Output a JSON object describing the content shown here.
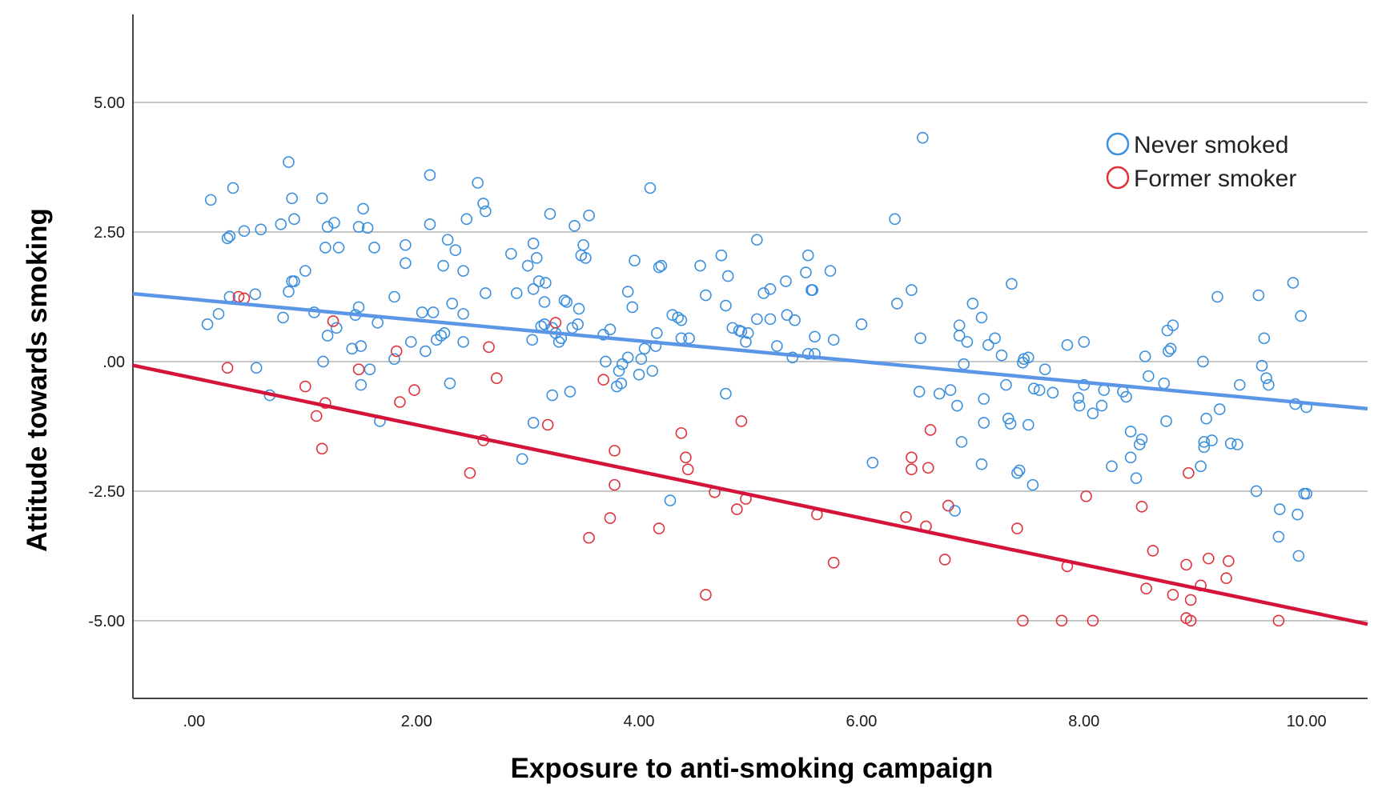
{
  "chart_data": {
    "type": "scatter",
    "title": "",
    "xlabel": "Exposure to anti-smoking campaign",
    "ylabel": "Attitude towards smoking",
    "xlim": [
      -0.55,
      10.55
    ],
    "ylim": [
      -6.5,
      6.7
    ],
    "x_ticks": [
      ".00",
      "2.00",
      "4.00",
      "6.00",
      "8.00",
      "10.00"
    ],
    "x_tick_values": [
      0,
      2,
      4,
      6,
      8,
      10
    ],
    "y_ticks": [
      "5.00",
      "2.50",
      ".00",
      "-2.50",
      "-5.00"
    ],
    "y_tick_values": [
      5,
      2.5,
      0,
      -2.5,
      -5
    ],
    "grid": "horizontal",
    "legend_position": "top-right",
    "series": [
      {
        "name": "Never smoked",
        "color": "#3a8fde",
        "fit_line": {
          "color": "#5b95e5",
          "intercept": 1.2,
          "slope": -0.2
        },
        "points": [
          [
            0.12,
            0.72
          ],
          [
            0.15,
            3.12
          ],
          [
            0.22,
            0.92
          ],
          [
            0.3,
            2.38
          ],
          [
            0.32,
            2.42
          ],
          [
            0.35,
            3.35
          ],
          [
            0.32,
            1.25
          ],
          [
            0.45,
            2.52
          ],
          [
            0.55,
            1.3
          ],
          [
            0.6,
            2.55
          ],
          [
            0.56,
            -0.12
          ],
          [
            0.68,
            -0.65
          ],
          [
            0.78,
            2.65
          ],
          [
            0.8,
            0.85
          ],
          [
            0.85,
            1.35
          ],
          [
            0.85,
            3.85
          ],
          [
            0.88,
            3.15
          ],
          [
            0.9,
            2.75
          ],
          [
            0.88,
            1.55
          ],
          [
            0.9,
            1.55
          ],
          [
            1.0,
            1.75
          ],
          [
            1.08,
            0.95
          ],
          [
            1.15,
            3.15
          ],
          [
            1.18,
            2.2
          ],
          [
            1.2,
            2.6
          ],
          [
            1.16,
            0.0
          ],
          [
            1.2,
            0.5
          ],
          [
            1.26,
            2.68
          ],
          [
            1.28,
            0.65
          ],
          [
            1.3,
            2.2
          ],
          [
            1.42,
            0.25
          ],
          [
            1.45,
            0.9
          ],
          [
            1.48,
            1.05
          ],
          [
            1.48,
            2.6
          ],
          [
            1.5,
            0.3
          ],
          [
            1.5,
            -0.45
          ],
          [
            1.52,
            2.95
          ],
          [
            1.56,
            2.58
          ],
          [
            1.58,
            -0.15
          ],
          [
            1.62,
            2.2
          ],
          [
            1.65,
            0.75
          ],
          [
            1.67,
            -1.15
          ],
          [
            1.8,
            1.25
          ],
          [
            1.8,
            0.05
          ],
          [
            1.9,
            2.25
          ],
          [
            1.9,
            1.9
          ],
          [
            1.95,
            0.38
          ],
          [
            2.05,
            0.95
          ],
          [
            2.08,
            0.2
          ],
          [
            2.12,
            3.6
          ],
          [
            2.12,
            2.65
          ],
          [
            2.15,
            0.95
          ],
          [
            2.18,
            0.42
          ],
          [
            2.22,
            0.5
          ],
          [
            2.24,
            1.85
          ],
          [
            2.25,
            0.55
          ],
          [
            2.28,
            2.35
          ],
          [
            2.32,
            1.12
          ],
          [
            2.3,
            -0.42
          ],
          [
            2.35,
            2.15
          ],
          [
            2.42,
            1.75
          ],
          [
            2.42,
            0.92
          ],
          [
            2.42,
            0.38
          ],
          [
            2.45,
            2.75
          ],
          [
            2.55,
            3.45
          ],
          [
            2.6,
            3.05
          ],
          [
            2.62,
            2.9
          ],
          [
            2.62,
            1.32
          ],
          [
            2.85,
            2.08
          ],
          [
            2.9,
            1.32
          ],
          [
            2.95,
            -1.88
          ],
          [
            3.0,
            1.85
          ],
          [
            3.04,
            0.42
          ],
          [
            3.05,
            1.4
          ],
          [
            3.05,
            2.28
          ],
          [
            3.08,
            2.0
          ],
          [
            3.1,
            1.55
          ],
          [
            3.12,
            0.68
          ],
          [
            3.15,
            1.15
          ],
          [
            3.15,
            0.72
          ],
          [
            3.16,
            1.52
          ],
          [
            3.2,
            2.85
          ],
          [
            3.22,
            0.65
          ],
          [
            3.25,
            0.55
          ],
          [
            3.22,
            -0.65
          ],
          [
            3.28,
            0.38
          ],
          [
            3.3,
            0.45
          ],
          [
            3.33,
            1.18
          ],
          [
            3.35,
            1.15
          ],
          [
            3.38,
            -0.58
          ],
          [
            3.4,
            0.65
          ],
          [
            3.42,
            2.62
          ],
          [
            3.45,
            0.72
          ],
          [
            3.46,
            1.02
          ],
          [
            3.48,
            2.05
          ],
          [
            3.5,
            2.25
          ],
          [
            3.52,
            2.0
          ],
          [
            3.55,
            2.82
          ],
          [
            3.05,
            -1.18
          ],
          [
            3.68,
            0.52
          ],
          [
            3.7,
            0.0
          ],
          [
            3.74,
            0.62
          ],
          [
            3.8,
            -0.48
          ],
          [
            3.82,
            -0.18
          ],
          [
            3.85,
            -0.05
          ],
          [
            3.84,
            -0.42
          ],
          [
            3.9,
            0.08
          ],
          [
            3.9,
            1.35
          ],
          [
            3.94,
            1.05
          ],
          [
            3.96,
            1.95
          ],
          [
            4.0,
            -0.25
          ],
          [
            4.02,
            0.05
          ],
          [
            4.05,
            0.25
          ],
          [
            4.1,
            3.35
          ],
          [
            4.12,
            -0.18
          ],
          [
            4.15,
            0.3
          ],
          [
            4.16,
            0.55
          ],
          [
            4.18,
            1.82
          ],
          [
            4.2,
            1.85
          ],
          [
            4.28,
            -2.68
          ],
          [
            4.3,
            0.9
          ],
          [
            4.35,
            0.85
          ],
          [
            4.38,
            0.8
          ],
          [
            4.38,
            0.45
          ],
          [
            4.45,
            0.45
          ],
          [
            4.55,
            1.85
          ],
          [
            4.6,
            1.28
          ],
          [
            4.74,
            2.05
          ],
          [
            4.78,
            1.08
          ],
          [
            4.78,
            -0.62
          ],
          [
            4.8,
            1.65
          ],
          [
            4.84,
            0.65
          ],
          [
            4.9,
            0.6
          ],
          [
            4.92,
            0.58
          ],
          [
            4.96,
            0.38
          ],
          [
            4.98,
            0.55
          ],
          [
            5.06,
            0.82
          ],
          [
            5.06,
            2.35
          ],
          [
            5.12,
            1.32
          ],
          [
            5.18,
            1.4
          ],
          [
            5.18,
            0.82
          ],
          [
            5.24,
            0.3
          ],
          [
            5.32,
            1.55
          ],
          [
            5.33,
            0.9
          ],
          [
            5.38,
            0.08
          ],
          [
            5.4,
            0.8
          ],
          [
            5.5,
            1.72
          ],
          [
            5.52,
            2.05
          ],
          [
            5.52,
            0.15
          ],
          [
            5.55,
            1.38
          ],
          [
            5.56,
            1.38
          ],
          [
            5.58,
            0.48
          ],
          [
            5.58,
            0.15
          ],
          [
            5.72,
            1.75
          ],
          [
            5.75,
            0.42
          ],
          [
            6.0,
            0.72
          ],
          [
            6.1,
            -1.95
          ],
          [
            6.3,
            2.75
          ],
          [
            6.32,
            1.12
          ],
          [
            6.45,
            1.38
          ],
          [
            6.52,
            -0.58
          ],
          [
            6.53,
            0.45
          ],
          [
            6.55,
            4.32
          ],
          [
            6.7,
            -0.62
          ],
          [
            6.8,
            -0.55
          ],
          [
            6.84,
            -2.88
          ],
          [
            6.86,
            -0.85
          ],
          [
            6.88,
            0.5
          ],
          [
            6.88,
            0.7
          ],
          [
            6.9,
            -1.55
          ],
          [
            6.92,
            -0.05
          ],
          [
            6.95,
            0.38
          ],
          [
            7.0,
            1.12
          ],
          [
            7.08,
            0.85
          ],
          [
            7.08,
            -1.98
          ],
          [
            7.1,
            -0.72
          ],
          [
            7.1,
            -1.18
          ],
          [
            7.14,
            0.32
          ],
          [
            7.2,
            0.45
          ],
          [
            7.26,
            0.12
          ],
          [
            7.3,
            -0.45
          ],
          [
            7.32,
            -1.1
          ],
          [
            7.34,
            -1.2
          ],
          [
            7.35,
            1.5
          ],
          [
            7.4,
            -2.15
          ],
          [
            7.42,
            -2.1
          ],
          [
            7.45,
            -0.02
          ],
          [
            7.46,
            0.05
          ],
          [
            7.5,
            0.08
          ],
          [
            7.5,
            -1.22
          ],
          [
            7.54,
            -2.38
          ],
          [
            7.55,
            -0.52
          ],
          [
            7.6,
            -0.55
          ],
          [
            7.65,
            -0.15
          ],
          [
            7.72,
            -0.6
          ],
          [
            7.85,
            0.32
          ],
          [
            7.95,
            -0.7
          ],
          [
            7.96,
            -0.85
          ],
          [
            8.0,
            0.38
          ],
          [
            8.0,
            -0.45
          ],
          [
            8.08,
            -1.0
          ],
          [
            8.16,
            -0.85
          ],
          [
            8.18,
            -0.55
          ],
          [
            8.25,
            -2.02
          ],
          [
            8.35,
            -0.58
          ],
          [
            8.38,
            -0.68
          ],
          [
            8.42,
            -1.35
          ],
          [
            8.42,
            -1.85
          ],
          [
            8.47,
            -2.25
          ],
          [
            8.5,
            -1.6
          ],
          [
            8.52,
            -1.5
          ],
          [
            8.55,
            0.1
          ],
          [
            8.58,
            -0.28
          ],
          [
            8.72,
            -0.42
          ],
          [
            8.74,
            -1.15
          ],
          [
            8.75,
            0.6
          ],
          [
            8.76,
            0.2
          ],
          [
            8.78,
            0.25
          ],
          [
            8.8,
            0.7
          ],
          [
            9.05,
            -2.02
          ],
          [
            9.07,
            0.0
          ],
          [
            9.08,
            -1.65
          ],
          [
            9.08,
            -1.55
          ],
          [
            9.1,
            -1.1
          ],
          [
            9.15,
            -1.52
          ],
          [
            9.2,
            1.25
          ],
          [
            9.22,
            -0.92
          ],
          [
            9.32,
            -1.58
          ],
          [
            9.38,
            -1.6
          ],
          [
            9.4,
            -0.45
          ],
          [
            9.55,
            -2.5
          ],
          [
            9.57,
            1.28
          ],
          [
            9.6,
            -0.08
          ],
          [
            9.62,
            0.45
          ],
          [
            9.64,
            -0.32
          ],
          [
            9.66,
            -0.45
          ],
          [
            9.75,
            -3.38
          ],
          [
            9.76,
            -2.85
          ],
          [
            9.88,
            1.52
          ],
          [
            9.9,
            -0.82
          ],
          [
            9.92,
            -2.95
          ],
          [
            9.93,
            -3.75
          ],
          [
            9.95,
            0.88
          ],
          [
            9.98,
            -2.55
          ],
          [
            10.0,
            -2.55
          ],
          [
            10.0,
            -0.88
          ]
        ]
      },
      {
        "name": "Former smoker",
        "color": "#e0313a",
        "fit_line": {
          "color": "#d4143b",
          "intercept": -0.32,
          "slope": -0.45
        },
        "points": [
          [
            0.3,
            -0.12
          ],
          [
            0.4,
            1.25
          ],
          [
            0.45,
            1.22
          ],
          [
            1.0,
            -0.48
          ],
          [
            1.1,
            -1.05
          ],
          [
            1.15,
            -1.68
          ],
          [
            1.18,
            -0.8
          ],
          [
            1.25,
            0.78
          ],
          [
            1.48,
            -0.15
          ],
          [
            1.82,
            0.2
          ],
          [
            1.85,
            -0.78
          ],
          [
            1.98,
            -0.55
          ],
          [
            2.48,
            -2.15
          ],
          [
            2.6,
            -1.52
          ],
          [
            2.65,
            0.28
          ],
          [
            2.72,
            -0.32
          ],
          [
            3.18,
            -1.22
          ],
          [
            3.25,
            0.75
          ],
          [
            3.55,
            -3.4
          ],
          [
            3.68,
            -0.35
          ],
          [
            3.74,
            -3.02
          ],
          [
            3.78,
            -2.38
          ],
          [
            3.78,
            -1.72
          ],
          [
            4.18,
            -3.22
          ],
          [
            4.38,
            -1.38
          ],
          [
            4.42,
            -1.85
          ],
          [
            4.44,
            -2.08
          ],
          [
            4.6,
            -4.5
          ],
          [
            4.68,
            -2.52
          ],
          [
            4.88,
            -2.85
          ],
          [
            4.92,
            -1.15
          ],
          [
            4.96,
            -2.65
          ],
          [
            5.6,
            -2.95
          ],
          [
            5.75,
            -3.88
          ],
          [
            6.4,
            -3.0
          ],
          [
            6.45,
            -2.08
          ],
          [
            6.45,
            -1.85
          ],
          [
            6.58,
            -3.18
          ],
          [
            6.6,
            -2.05
          ],
          [
            6.62,
            -1.32
          ],
          [
            6.75,
            -3.82
          ],
          [
            6.78,
            -2.78
          ],
          [
            7.4,
            -3.22
          ],
          [
            7.45,
            -5.0
          ],
          [
            7.8,
            -5.0
          ],
          [
            7.85,
            -3.95
          ],
          [
            8.02,
            -2.6
          ],
          [
            8.08,
            -5.0
          ],
          [
            8.52,
            -2.8
          ],
          [
            8.56,
            -4.38
          ],
          [
            8.62,
            -3.65
          ],
          [
            8.8,
            -4.5
          ],
          [
            8.92,
            -3.92
          ],
          [
            8.92,
            -4.95
          ],
          [
            8.94,
            -2.15
          ],
          [
            8.96,
            -5.0
          ],
          [
            8.96,
            -4.6
          ],
          [
            9.05,
            -4.32
          ],
          [
            9.12,
            -3.8
          ],
          [
            9.28,
            -4.18
          ],
          [
            9.3,
            -3.85
          ],
          [
            9.75,
            -5.0
          ]
        ]
      }
    ]
  }
}
